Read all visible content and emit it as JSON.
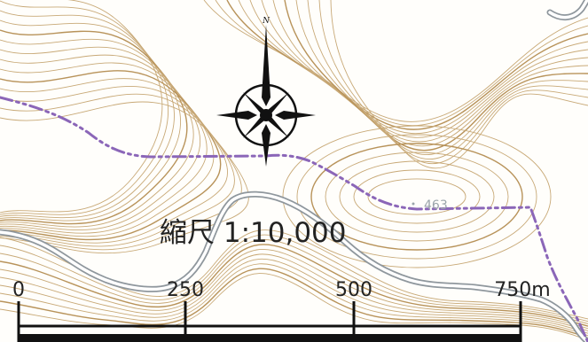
{
  "map": {
    "north_label": "N",
    "elevation_label": "463",
    "scale_title": "縮尺 1:10,000",
    "scale_ticks": [
      "0",
      "250",
      "500",
      "750m"
    ]
  },
  "colors": {
    "background": "#fffefb",
    "contour": "#c8a977",
    "contour_index": "#b8935a",
    "road_outline": "#8f979d",
    "road_fill": "#ffffff",
    "boundary": "#8b66b8",
    "scale_bar": "#111111",
    "compass": "#111111",
    "elevation_text": "#9aa4aa"
  },
  "icons": {
    "north": "compass-rose-icon"
  }
}
